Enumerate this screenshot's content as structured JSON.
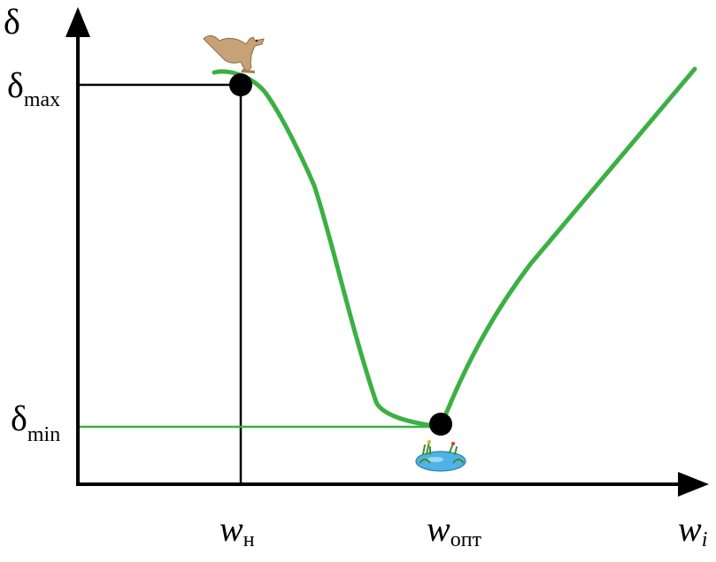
{
  "colors": {
    "axis": "#000000",
    "curve": "#3cb043",
    "guide_min": "#3cb043",
    "point": "#000000",
    "water": "#4fb3e8"
  },
  "icons": {
    "max_point": "kangaroo-icon",
    "min_point": "pond-icon"
  },
  "axes": {
    "y": {
      "symbol": "δ"
    },
    "x": {
      "symbol": "w",
      "subscript": "i"
    }
  },
  "levels": {
    "max": {
      "symbol": "δ",
      "subscript": "max"
    },
    "min": {
      "symbol": "δ",
      "subscript": "min"
    }
  },
  "x_marks": {
    "nominal": {
      "symbol": "w",
      "subscript": "н"
    },
    "optimal": {
      "symbol": "w",
      "subscript": "опт"
    }
  }
}
